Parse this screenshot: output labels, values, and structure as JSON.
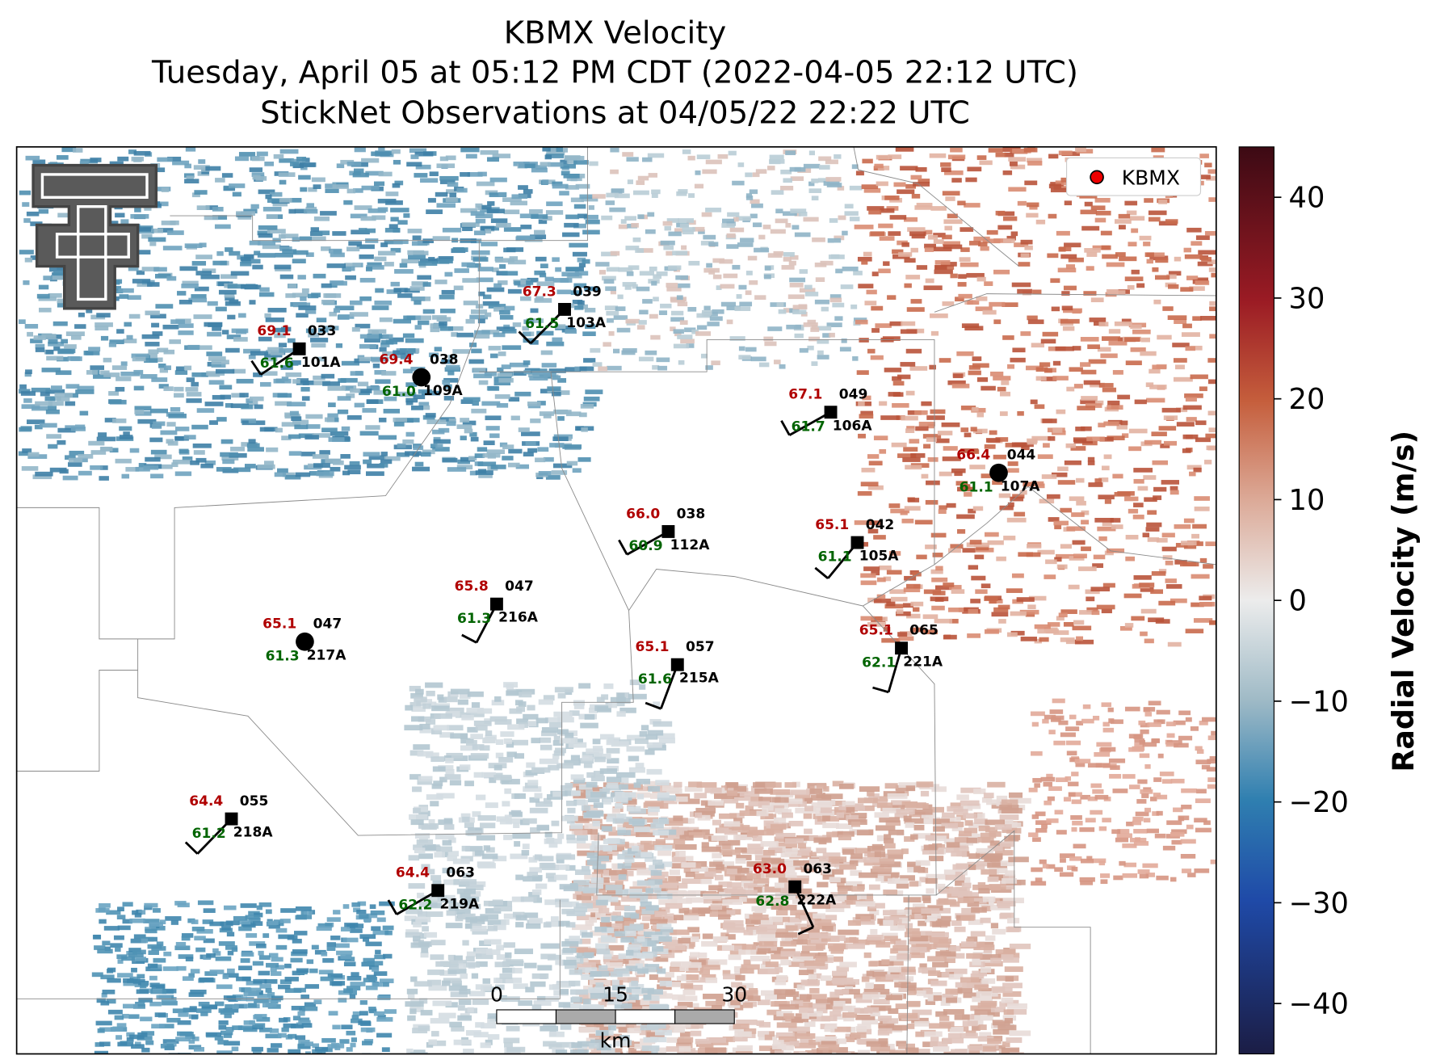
{
  "header": {
    "title_lines": [
      "KBMX Velocity",
      "Tuesday, April 05 at 05:12 PM CDT (2022-04-05 22:12 UTC)",
      "StickNet Observations at 04/05/22 22:22 UTC"
    ]
  },
  "legend": {
    "label": "KBMX"
  },
  "stations": [
    {
      "temperature": 69.1,
      "direction": "033",
      "dewpoint": 61.6,
      "id": "101A"
    },
    {
      "temperature": 69.4,
      "direction": "038",
      "dewpoint": 61.0,
      "id": "109A"
    },
    {
      "temperature": 67.3,
      "direction": "039",
      "dewpoint": 61.5,
      "id": "103A"
    },
    {
      "temperature": 67.1,
      "direction": "049",
      "dewpoint": 61.7,
      "id": "106A"
    },
    {
      "temperature": 66.4,
      "direction": "044",
      "dewpoint": 61.1,
      "id": "107A"
    },
    {
      "temperature": 66.0,
      "direction": "038",
      "dewpoint": 60.9,
      "id": "112A"
    },
    {
      "temperature": 65.1,
      "direction": "042",
      "dewpoint": 61.1,
      "id": "105A"
    },
    {
      "temperature": 65.8,
      "direction": "047",
      "dewpoint": 61.3,
      "id": "216A"
    },
    {
      "temperature": 65.1,
      "direction": "047",
      "dewpoint": 61.3,
      "id": "217A"
    },
    {
      "temperature": 65.1,
      "direction": "057",
      "dewpoint": 61.6,
      "id": "215A"
    },
    {
      "temperature": 65.1,
      "direction": "065",
      "dewpoint": 62.1,
      "id": "221A"
    },
    {
      "temperature": 64.4,
      "direction": "055",
      "dewpoint": 61.2,
      "id": "218A"
    },
    {
      "temperature": 64.4,
      "direction": "063",
      "dewpoint": 62.2,
      "id": "219A"
    },
    {
      "temperature": 63.0,
      "direction": "063",
      "dewpoint": 62.8,
      "id": "222A"
    }
  ],
  "scale_bar": {
    "ticks": [
      0,
      15,
      30
    ],
    "unit": "km"
  },
  "colorbar": {
    "label": "Radial Velocity (m/s)",
    "lim": [
      -45,
      45
    ],
    "ticks": [
      {
        "value": -40,
        "label": "−40"
      },
      {
        "value": -30,
        "label": "−30"
      },
      {
        "value": -20,
        "label": "−20"
      },
      {
        "value": -10,
        "label": "−10"
      },
      0,
      10,
      20,
      30,
      40
    ]
  }
}
